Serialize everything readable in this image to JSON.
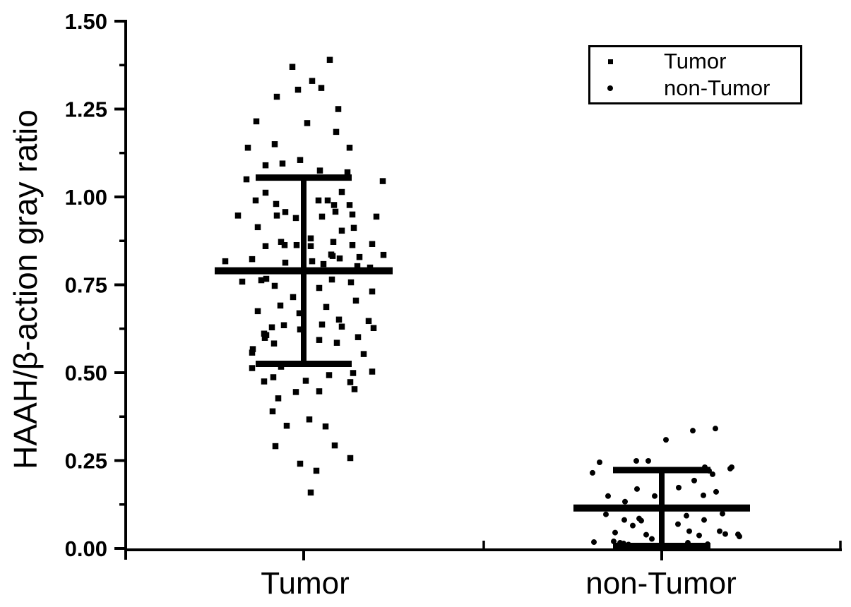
{
  "figure": {
    "background_color": "#ffffff",
    "foreground_color": "#000000"
  },
  "chart_data": {
    "type": "scatter",
    "title": "",
    "xlabel": "",
    "ylabel": "HAAH/β-action gray ratio",
    "categories": [
      "Tumor",
      "non-Tumor"
    ],
    "ylim": [
      0.0,
      1.5
    ],
    "yticks": [
      "0.00",
      "0.25",
      "0.50",
      "0.75",
      "1.00",
      "1.25",
      "1.50"
    ],
    "ytick_values": [
      0,
      0.25,
      0.5,
      0.75,
      1.0,
      1.25,
      1.5
    ],
    "minor_ytick_values": [
      0.125,
      0.375,
      0.625,
      0.875,
      1.125,
      1.375
    ],
    "grid": false,
    "legend_position": "top-right",
    "series": [
      {
        "name": "Tumor",
        "marker": "square",
        "color": "#000000",
        "error_bar": {
          "mean": 0.79,
          "upper": 1.055,
          "lower": 0.525
        },
        "points": [
          [
            37,
            1.39
          ],
          [
            -16,
            1.37
          ],
          [
            12,
            1.33
          ],
          [
            25,
            1.31
          ],
          [
            -8,
            1.305
          ],
          [
            -38,
            1.285
          ],
          [
            49,
            1.25
          ],
          [
            -67,
            1.215
          ],
          [
            5,
            1.21
          ],
          [
            46,
            1.185
          ],
          [
            -41,
            1.15
          ],
          [
            -79,
            1.14
          ],
          [
            65,
            1.14
          ],
          [
            -5,
            1.105
          ],
          [
            -30,
            1.095
          ],
          [
            -54,
            1.09
          ],
          [
            23,
            1.075
          ],
          [
            62,
            1.07
          ],
          [
            -81,
            1.05
          ],
          [
            112,
            1.045
          ],
          [
            -54,
            1.012
          ],
          [
            54,
            1.014
          ],
          [
            -68,
            0.99
          ],
          [
            21,
            0.99
          ],
          [
            34,
            0.99
          ],
          [
            -39,
            0.98
          ],
          [
            43,
            0.977
          ],
          [
            65,
            0.977
          ],
          [
            45,
            0.958
          ],
          [
            69,
            0.95
          ],
          [
            -26,
            0.957
          ],
          [
            -38,
            0.947
          ],
          [
            -93,
            0.947
          ],
          [
            -11,
            0.94
          ],
          [
            103,
            0.944
          ],
          [
            26,
            0.944
          ],
          [
            -65,
            0.914
          ],
          [
            54,
            0.904
          ],
          [
            71,
            0.912
          ],
          [
            -54,
            0.86
          ],
          [
            -32,
            0.872
          ],
          [
            -27,
            0.863
          ],
          [
            -10,
            0.863
          ],
          [
            10,
            0.882
          ],
          [
            10,
            0.86
          ],
          [
            42,
            0.872
          ],
          [
            69,
            0.863
          ],
          [
            97,
            0.866
          ],
          [
            39,
            0.836
          ],
          [
            41,
            0.832
          ],
          [
            51,
            0.825
          ],
          [
            79,
            0.829
          ],
          [
            113,
            0.835
          ],
          [
            -111,
            0.817
          ],
          [
            -73,
            0.823
          ],
          [
            -26,
            0.813
          ],
          [
            12,
            0.817
          ],
          [
            28,
            0.809
          ],
          [
            76,
            0.803
          ],
          [
            94,
            0.799
          ],
          [
            -87,
            0.759
          ],
          [
            -60,
            0.763
          ],
          [
            -53,
            0.767
          ],
          [
            -41,
            0.747
          ],
          [
            40,
            0.765
          ],
          [
            67,
            0.757
          ],
          [
            22,
            0.741
          ],
          [
            97,
            0.731
          ],
          [
            -15,
            0.715
          ],
          [
            74,
            0.705
          ],
          [
            -33,
            0.691
          ],
          [
            32,
            0.687
          ],
          [
            -65,
            0.675
          ],
          [
            -6,
            0.669
          ],
          [
            50,
            0.651
          ],
          [
            92,
            0.647
          ],
          [
            26,
            0.637
          ],
          [
            54,
            0.631
          ],
          [
            -45,
            0.629
          ],
          [
            -28,
            0.635
          ],
          [
            -5,
            0.623
          ],
          [
            99,
            0.627
          ],
          [
            -56,
            0.611
          ],
          [
            -53,
            0.607
          ],
          [
            -55,
            0.599
          ],
          [
            -42,
            0.583
          ],
          [
            22,
            0.593
          ],
          [
            47,
            0.585
          ],
          [
            77,
            0.601
          ],
          [
            -72,
            0.567
          ],
          [
            -73,
            0.557
          ],
          [
            85,
            0.553
          ],
          [
            -32,
            0.517
          ],
          [
            -73,
            0.513
          ],
          [
            70,
            0.499
          ],
          [
            97,
            0.503
          ],
          [
            -43,
            0.487
          ],
          [
            -56,
            0.475
          ],
          [
            3,
            0.477
          ],
          [
            36,
            0.493
          ],
          [
            66,
            0.473
          ],
          [
            -11,
            0.445
          ],
          [
            22,
            0.447
          ],
          [
            72,
            0.453
          ],
          [
            -36,
            0.427
          ],
          [
            -44,
            0.39
          ],
          [
            8,
            0.367
          ],
          [
            -24,
            0.349
          ],
          [
            31,
            0.347
          ],
          [
            -40,
            0.291
          ],
          [
            44,
            0.293
          ],
          [
            66,
            0.257
          ],
          [
            -5,
            0.241
          ],
          [
            18,
            0.221
          ],
          [
            10,
            0.159
          ]
        ]
      },
      {
        "name": "non-Tumor",
        "marker": "circle",
        "color": "#000000",
        "error_bar": {
          "mean": 0.115,
          "upper": 0.223,
          "lower": 0.007
        },
        "points": [
          [
            44,
            0.335
          ],
          [
            76,
            0.341
          ],
          [
            6,
            0.309
          ],
          [
            -88,
            0.245
          ],
          [
            -36,
            0.249
          ],
          [
            -19,
            0.249
          ],
          [
            61,
            0.231
          ],
          [
            99,
            0.231
          ],
          [
            -98,
            0.215
          ],
          [
            67,
            0.221
          ],
          [
            97,
            0.227
          ],
          [
            72,
            0.211
          ],
          [
            46,
            0.193
          ],
          [
            24,
            0.173
          ],
          [
            -35,
            0.169
          ],
          [
            -76,
            0.149
          ],
          [
            -10,
            0.149
          ],
          [
            59,
            0.151
          ],
          [
            77,
            0.161
          ],
          [
            -52,
            0.133
          ],
          [
            86,
            0.099
          ],
          [
            -79,
            0.097
          ],
          [
            35,
            0.093
          ],
          [
            -53,
            0.081
          ],
          [
            -32,
            0.085
          ],
          [
            -29,
            0.079
          ],
          [
            60,
            0.081
          ],
          [
            -41,
            0.065
          ],
          [
            23,
            0.069
          ],
          [
            39,
            0.049
          ],
          [
            -66,
            0.045
          ],
          [
            53,
            0.037
          ],
          [
            82,
            0.049
          ],
          [
            90,
            0.041
          ],
          [
            108,
            0.04
          ],
          [
            -22,
            0.039
          ],
          [
            -14,
            0.027
          ],
          [
            -96,
            0.018
          ],
          [
            -68,
            0.02
          ],
          [
            -59,
            0.016
          ],
          [
            -54,
            0.014
          ],
          [
            -47,
            0.011
          ],
          [
            37,
            0.016
          ],
          [
            65,
            0.012
          ],
          [
            110,
            0.034
          ]
        ]
      }
    ],
    "notes": "points are [x_jitter_px_from_category_center, y_value]; error bars show mean line with upper/lower caps"
  }
}
